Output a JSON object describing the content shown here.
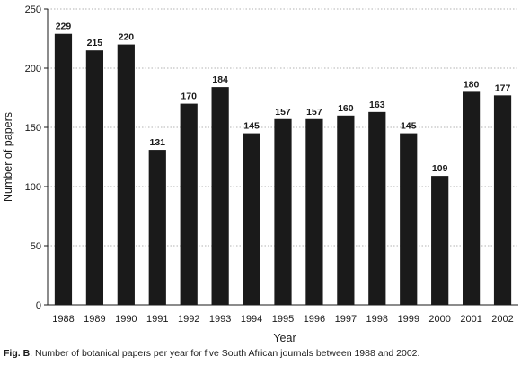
{
  "chart_data": {
    "type": "bar",
    "categories": [
      "1988",
      "1989",
      "1990",
      "1991",
      "1992",
      "1993",
      "1994",
      "1995",
      "1996",
      "1997",
      "1998",
      "1999",
      "2000",
      "2001",
      "2002"
    ],
    "values": [
      229,
      215,
      220,
      131,
      170,
      184,
      145,
      157,
      157,
      160,
      163,
      145,
      109,
      180,
      177
    ],
    "xlabel": "Year",
    "ylabel": "Number of papers",
    "ylim": [
      0,
      250
    ],
    "yticks": [
      0,
      50,
      100,
      150,
      200,
      250
    ],
    "grid": "horizontal dotted",
    "bar_color": "#1a1a1a",
    "data_labels": true
  },
  "caption": {
    "label": "Fig. B",
    "text": ". Number of botanical papers per year for five South African journals between 1988 and 2002."
  }
}
